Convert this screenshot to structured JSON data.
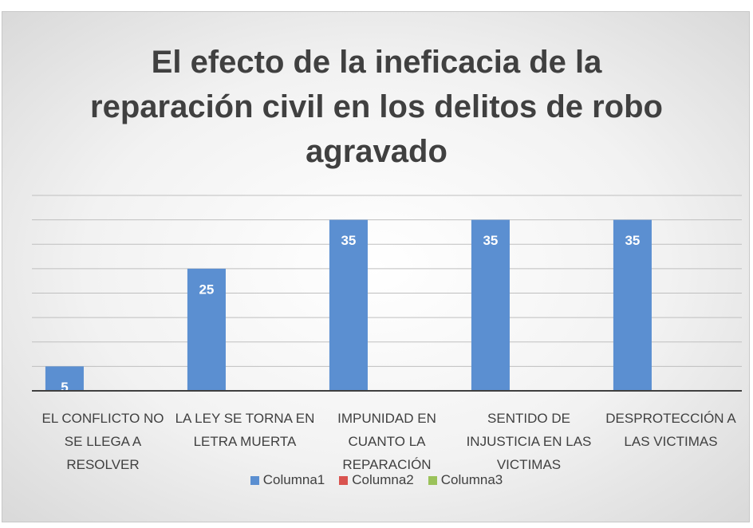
{
  "chart_data": {
    "type": "bar",
    "title": "El efecto de la ineficacia de la reparación civil en los delitos de robo agravado",
    "categories": [
      "EL CONFLICTO NO SE LLEGA A RESOLVER",
      "LA LEY SE TORNA EN LETRA MUERTA",
      "IMPUNIDAD EN CUANTO LA REPARACIÓN",
      "SENTIDO DE INJUSTICIA EN LAS VICTIMAS",
      "DESPROTECCIÓN A LAS VICTIMAS"
    ],
    "series": [
      {
        "name": "Columna1",
        "color": "#5b8fd1",
        "values": [
          5,
          25,
          35,
          35,
          35
        ]
      },
      {
        "name": "Columna2",
        "color": "#d9534f",
        "values": [
          null,
          null,
          null,
          null,
          null
        ]
      },
      {
        "name": "Columna3",
        "color": "#9bc25a",
        "values": [
          null,
          null,
          null,
          null,
          null
        ]
      }
    ],
    "ylim": [
      0,
      40
    ],
    "yticks": [
      0,
      5,
      10,
      15,
      20,
      25,
      30,
      35,
      40
    ],
    "grid": true,
    "tick_labels": false,
    "data_labels": true,
    "legend": "bottom"
  }
}
